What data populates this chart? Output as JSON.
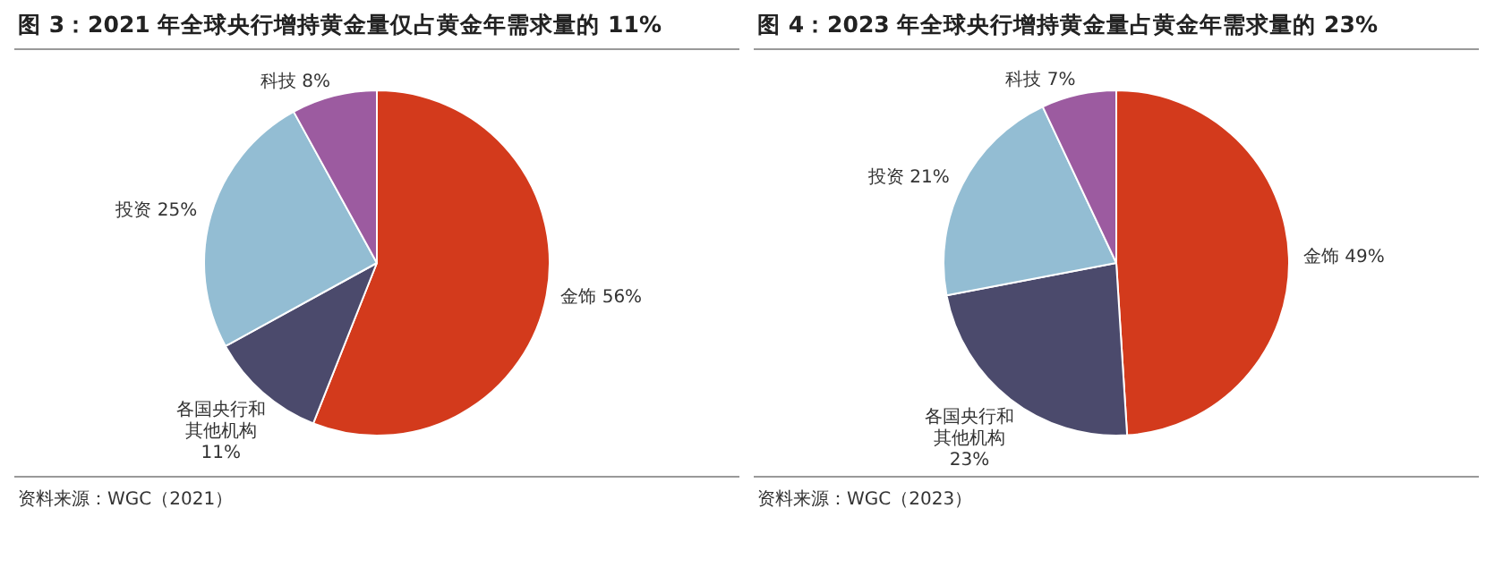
{
  "chart_data": [
    {
      "type": "pie",
      "title": "图 3：2021 年全球央行增持黄金量仅占黄金年需求量的 11%",
      "categories": [
        "金饰",
        "各国央行和其他机构",
        "投资",
        "科技"
      ],
      "values": [
        56,
        11,
        25,
        8
      ],
      "value_labels": [
        "56%",
        "11%",
        "25%",
        "8%"
      ],
      "colors": [
        "#d33a1c",
        "#4b4a6c",
        "#93bdd3",
        "#9c5ba0"
      ],
      "legend": false,
      "annotations": [
        "资料来源：WGC（2021）"
      ]
    },
    {
      "type": "pie",
      "title": "图 4：2023 年全球央行增持黄金量占黄金年需求量的 23%",
      "categories": [
        "金饰",
        "各国央行和其他机构",
        "投资",
        "科技"
      ],
      "values": [
        49,
        23,
        21,
        7
      ],
      "value_labels": [
        "49%",
        "23%",
        "21%",
        "7%"
      ],
      "colors": [
        "#d33a1c",
        "#4b4a6c",
        "#93bdd3",
        "#9c5ba0"
      ],
      "legend": false,
      "annotations": [
        "资料来源：WGC（2023）"
      ]
    }
  ]
}
